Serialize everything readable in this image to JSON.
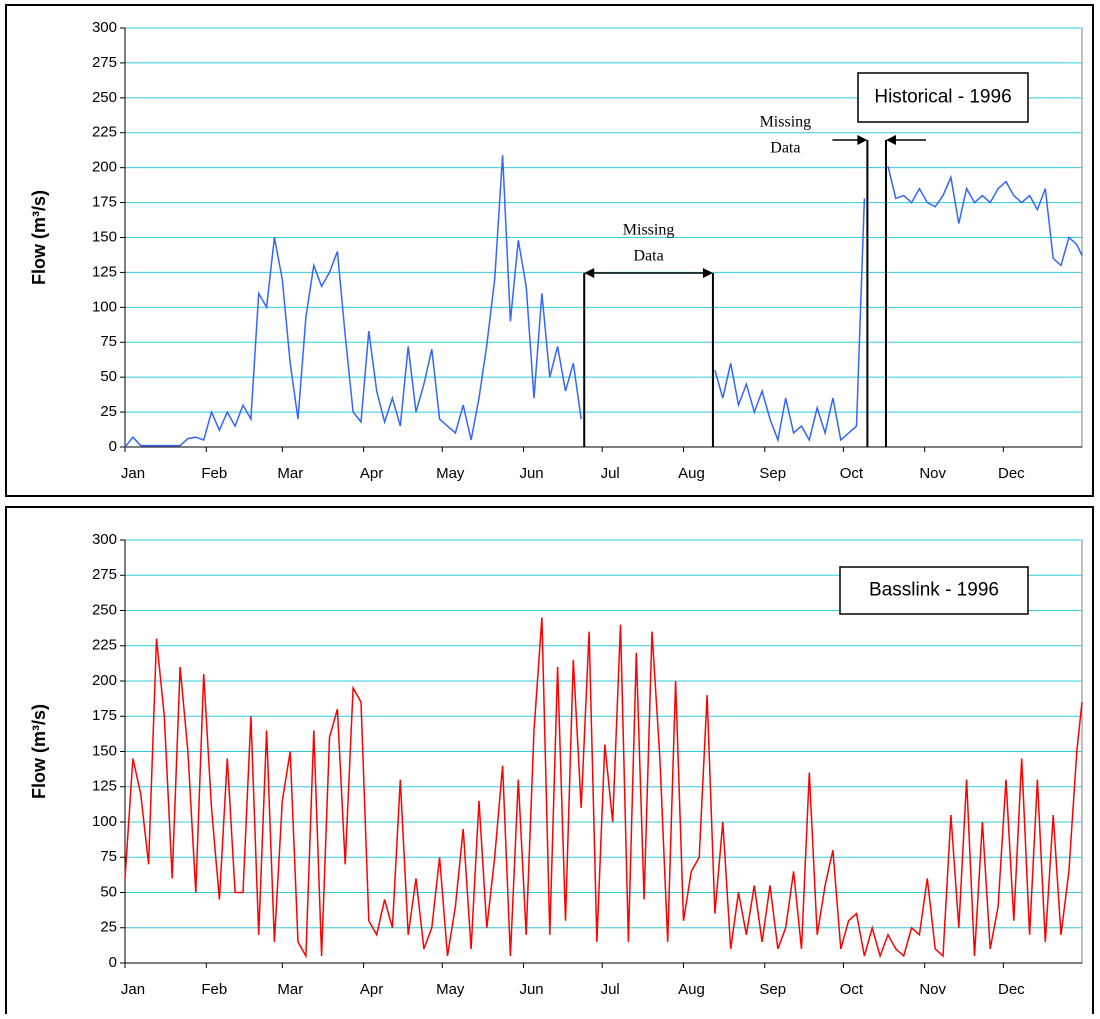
{
  "chart_data": [
    {
      "type": "line",
      "ylabel": "Flow (m³/s)",
      "xlim": [
        1,
        366
      ],
      "xticks": [
        {
          "value": 1,
          "label": "Jan"
        },
        {
          "value": 32,
          "label": "Feb"
        },
        {
          "value": 61,
          "label": "Mar"
        },
        {
          "value": 92,
          "label": "Apr"
        },
        {
          "value": 122,
          "label": "May"
        },
        {
          "value": 153,
          "label": "Jun"
        },
        {
          "value": 183,
          "label": "Jul"
        },
        {
          "value": 214,
          "label": "Aug"
        },
        {
          "value": 245,
          "label": "Sep"
        },
        {
          "value": 275,
          "label": "Oct"
        },
        {
          "value": 306,
          "label": "Nov"
        },
        {
          "value": 336,
          "label": "Dec"
        }
      ],
      "ylim": [
        0,
        300
      ],
      "yticks": [
        0,
        25,
        50,
        75,
        100,
        125,
        150,
        175,
        200,
        225,
        250,
        275,
        300
      ],
      "grid": true,
      "x": [
        1,
        4,
        7,
        10,
        13,
        16,
        19,
        22,
        25,
        28,
        31,
        34,
        37,
        40,
        43,
        46,
        49,
        52,
        55,
        58,
        61,
        64,
        67,
        70,
        73,
        76,
        79,
        82,
        85,
        88,
        91,
        94,
        97,
        100,
        103,
        106,
        109,
        112,
        115,
        118,
        121,
        124,
        127,
        130,
        133,
        136,
        139,
        142,
        145,
        148,
        151,
        154,
        157,
        160,
        163,
        166,
        169,
        172,
        175,
        178,
        181,
        184,
        187,
        190,
        193,
        196,
        199,
        202,
        205,
        208,
        211,
        214,
        217,
        220,
        223,
        226,
        229,
        232,
        235,
        238,
        241,
        244,
        247,
        250,
        253,
        256,
        259,
        262,
        265,
        268,
        271,
        274,
        277,
        280,
        283,
        286,
        289,
        292,
        295,
        298,
        301,
        304,
        307,
        310,
        313,
        316,
        319,
        322,
        325,
        328,
        331,
        334,
        337,
        340,
        343,
        346,
        349,
        352,
        355,
        358,
        361,
        364,
        366
      ],
      "series": [
        {
          "name": "Historical - 1996",
          "color": "#3366ff",
          "values": [
            0,
            7,
            1,
            1,
            1,
            1,
            1,
            1,
            6,
            7,
            5,
            25,
            12,
            25,
            15,
            30,
            20,
            110,
            100,
            150,
            120,
            60,
            20,
            93,
            130,
            115,
            125,
            140,
            80,
            25,
            18,
            83,
            40,
            18,
            35,
            15,
            72,
            25,
            45,
            70,
            20,
            15,
            10,
            30,
            5,
            35,
            73,
            120,
            209,
            90,
            148,
            115,
            35,
            110,
            50,
            72,
            40,
            60,
            20,
            null,
            null,
            null,
            null,
            null,
            null,
            null,
            null,
            null,
            null,
            null,
            null,
            null,
            null,
            null,
            null,
            55,
            35,
            60,
            30,
            45,
            25,
            40,
            20,
            5,
            35,
            10,
            15,
            5,
            28,
            10,
            35,
            5,
            10,
            15,
            178,
            null,
            null,
            201,
            178,
            180,
            175,
            185,
            175,
            172,
            180,
            193,
            160,
            185,
            175,
            180,
            175,
            185,
            190,
            180,
            175,
            180,
            170,
            185,
            135,
            130,
            150,
            145,
            137
          ]
        }
      ],
      "annotations": [
        {
          "lines": [
            "Missing",
            "Data"
          ]
        },
        {
          "lines": [
            "Missing",
            "Data"
          ]
        }
      ]
    },
    {
      "type": "line",
      "ylabel": "Flow (m³/s)",
      "xlim": [
        1,
        366
      ],
      "xticks": [
        {
          "value": 1,
          "label": "Jan"
        },
        {
          "value": 32,
          "label": "Feb"
        },
        {
          "value": 61,
          "label": "Mar"
        },
        {
          "value": 92,
          "label": "Apr"
        },
        {
          "value": 122,
          "label": "May"
        },
        {
          "value": 153,
          "label": "Jun"
        },
        {
          "value": 183,
          "label": "Jul"
        },
        {
          "value": 214,
          "label": "Aug"
        },
        {
          "value": 245,
          "label": "Sep"
        },
        {
          "value": 275,
          "label": "Oct"
        },
        {
          "value": 306,
          "label": "Nov"
        },
        {
          "value": 336,
          "label": "Dec"
        }
      ],
      "ylim": [
        0,
        300
      ],
      "yticks": [
        0,
        25,
        50,
        75,
        100,
        125,
        150,
        175,
        200,
        225,
        250,
        275,
        300
      ],
      "grid": true,
      "x": [
        1,
        4,
        7,
        10,
        13,
        16,
        19,
        22,
        25,
        28,
        31,
        34,
        37,
        40,
        43,
        46,
        49,
        52,
        55,
        58,
        61,
        64,
        67,
        70,
        73,
        76,
        79,
        82,
        85,
        88,
        91,
        94,
        97,
        100,
        103,
        106,
        109,
        112,
        115,
        118,
        121,
        124,
        127,
        130,
        133,
        136,
        139,
        142,
        145,
        148,
        151,
        154,
        157,
        160,
        163,
        166,
        169,
        172,
        175,
        178,
        181,
        184,
        187,
        190,
        193,
        196,
        199,
        202,
        205,
        208,
        211,
        214,
        217,
        220,
        223,
        226,
        229,
        232,
        235,
        238,
        241,
        244,
        247,
        250,
        253,
        256,
        259,
        262,
        265,
        268,
        271,
        274,
        277,
        280,
        283,
        286,
        289,
        292,
        295,
        298,
        301,
        304,
        307,
        310,
        313,
        316,
        319,
        322,
        325,
        328,
        331,
        334,
        337,
        340,
        343,
        346,
        349,
        352,
        355,
        358,
        361,
        364,
        366
      ],
      "series": [
        {
          "name": "Basslink - 1996",
          "color": "#ff0000",
          "values": [
            60,
            145,
            120,
            70,
            230,
            175,
            60,
            210,
            150,
            50,
            205,
            110,
            45,
            145,
            50,
            50,
            175,
            20,
            165,
            15,
            115,
            150,
            15,
            5,
            165,
            5,
            160,
            180,
            70,
            195,
            185,
            30,
            20,
            45,
            25,
            130,
            20,
            60,
            10,
            25,
            75,
            5,
            40,
            95,
            10,
            115,
            25,
            75,
            140,
            5,
            130,
            20,
            165,
            245,
            20,
            210,
            30,
            215,
            110,
            235,
            15,
            155,
            100,
            240,
            15,
            220,
            45,
            235,
            145,
            15,
            200,
            30,
            65,
            75,
            190,
            35,
            100,
            10,
            50,
            20,
            55,
            15,
            55,
            10,
            25,
            65,
            10,
            135,
            20,
            55,
            80,
            10,
            30,
            35,
            5,
            25,
            5,
            20,
            10,
            5,
            25,
            20,
            60,
            10,
            5,
            105,
            25,
            130,
            5,
            100,
            10,
            40,
            130,
            30,
            145,
            20,
            130,
            15,
            105,
            20,
            65,
            150,
            185
          ]
        }
      ]
    }
  ]
}
